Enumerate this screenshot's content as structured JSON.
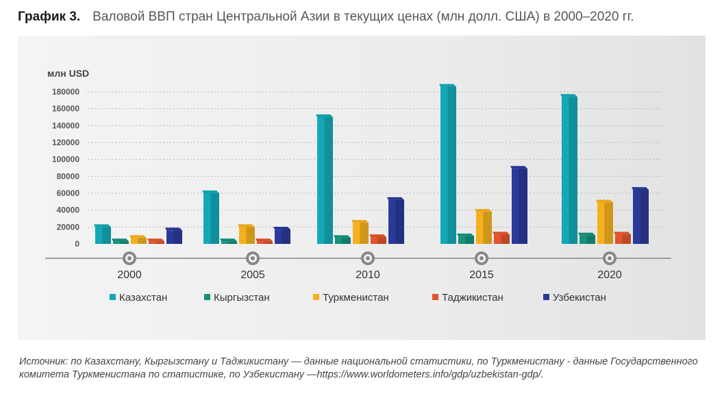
{
  "title": {
    "label": "График 3.",
    "text": "Валовой ВВП стран Центральной Азии в текущих ценах (млн долл. США) в 2000–2020 гг."
  },
  "source_text": "Источник: по Казахстану, Кыргызстану и Таджикистану — данные национальной статистики, по Туркменистану  - данные Государственного комитета Туркменистана по статистике, по Узбекистану —https://www.worldometers.info/gdp/uzbekistan-gdp/.",
  "colors": {
    "Казахстан": "#14a8b6",
    "Кыргызстан": "#13927c",
    "Туркменистан": "#f5b01e",
    "Таджикистан": "#e2542b",
    "Узбекистан": "#2a3a9a"
  },
  "chart_data": {
    "type": "bar",
    "title": "Валовой ВВП стран Центральной Азии в текущих ценах (млн долл. США) в 2000–2020 гг.",
    "ylabel": "млн USD",
    "xlabel": "",
    "ylim": [
      0,
      180000
    ],
    "yticks": [
      0,
      20000,
      40000,
      60000,
      80000,
      100000,
      120000,
      140000,
      160000,
      180000
    ],
    "grid": true,
    "legend": "bottom",
    "categories": [
      "2000",
      "2005",
      "2010",
      "2015",
      "2020"
    ],
    "series": [
      {
        "name": "Казахстан",
        "values": [
          20000,
          60000,
          150000,
          186000,
          174000
        ]
      },
      {
        "name": "Кыргызстан",
        "values": [
          3000,
          3000,
          7000,
          9000,
          10000
        ]
      },
      {
        "name": "Туркменистан",
        "values": [
          7000,
          20000,
          25000,
          38000,
          49000
        ]
      },
      {
        "name": "Таджикистан",
        "values": [
          3000,
          3000,
          8000,
          11000,
          11000
        ]
      },
      {
        "name": "Узбекистан",
        "values": [
          16000,
          17000,
          52000,
          89000,
          64000
        ]
      }
    ]
  }
}
